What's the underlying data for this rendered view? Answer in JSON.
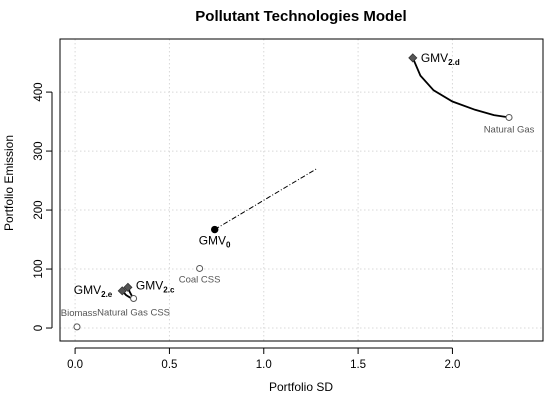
{
  "chart_data": {
    "type": "scatter",
    "title": "Pollutant Technologies Model",
    "xlabel": "Portfolio SD",
    "ylabel": "Portfolio Emission",
    "xlim": [
      -0.08,
      2.48
    ],
    "ylim": [
      -22,
      490
    ],
    "x_ticks": [
      0.0,
      0.5,
      1.0,
      1.5,
      2.0
    ],
    "x_tick_labels": [
      "0.0",
      "0.5",
      "1.0",
      "1.5",
      "2.0"
    ],
    "y_ticks": [
      0,
      100,
      200,
      300,
      400
    ],
    "y_tick_labels": [
      "0",
      "100",
      "200",
      "300",
      "400"
    ],
    "grid": true,
    "technologies": [
      {
        "label": "Biomass",
        "x": 0.01,
        "y": 2
      },
      {
        "label": "Natural Gas CSS",
        "x": 0.31,
        "y": 50
      },
      {
        "label": "Coal CSS",
        "x": 0.66,
        "y": 101
      },
      {
        "label": "Natural Gas",
        "x": 2.3,
        "y": 357
      }
    ],
    "gmv_points": [
      {
        "base": "GMV",
        "sub": "0",
        "x": 0.74,
        "y": 167,
        "marker": "circle"
      },
      {
        "base": "GMV",
        "sub": "2.c",
        "x": 0.28,
        "y": 69,
        "marker": "diamond"
      },
      {
        "base": "GMV",
        "sub": "2.e",
        "x": 0.25,
        "y": 63,
        "marker": "diamond"
      },
      {
        "base": "GMV",
        "sub": "2.d",
        "x": 1.79,
        "y": 458,
        "marker": "diamond"
      }
    ],
    "frontiers": [
      {
        "style": "solid",
        "points": [
          [
            1.79,
            458
          ],
          [
            1.83,
            428
          ],
          [
            1.9,
            403
          ],
          [
            2.0,
            384
          ],
          [
            2.12,
            370
          ],
          [
            2.22,
            361
          ],
          [
            2.3,
            357
          ]
        ]
      },
      {
        "style": "dashdot",
        "points": [
          [
            0.74,
            167
          ],
          [
            1.28,
            270
          ]
        ]
      },
      {
        "style": "solid",
        "points": [
          [
            0.28,
            69
          ],
          [
            0.29,
            61
          ],
          [
            0.3,
            55
          ],
          [
            0.31,
            51
          ]
        ]
      },
      {
        "style": "solid",
        "points": [
          [
            0.25,
            63
          ],
          [
            0.27,
            56
          ],
          [
            0.29,
            52
          ],
          [
            0.31,
            50
          ]
        ]
      }
    ]
  }
}
